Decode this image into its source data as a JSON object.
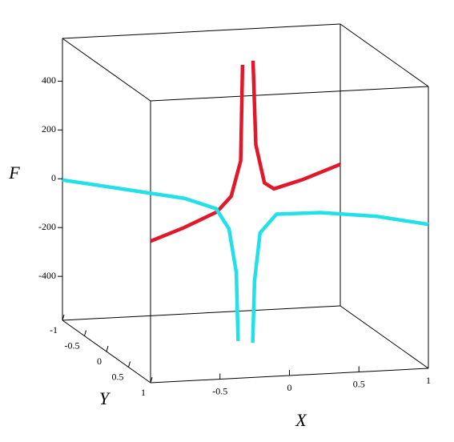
{
  "chart_data": {
    "type": "line3d",
    "xlabel": "X",
    "ylabel": "Y",
    "zlabel": "F",
    "xlim": [
      -1,
      1
    ],
    "ylim": [
      -1,
      1
    ],
    "zlim": [
      -580,
      575
    ],
    "xticks": [
      -0.5,
      0,
      0.5,
      1
    ],
    "yticks": [
      -1,
      -0.5,
      0,
      0.5,
      1
    ],
    "zticks": [
      -400,
      -200,
      0,
      200,
      400
    ],
    "series": [
      {
        "color": "#e0182a",
        "x": [
          -1,
          -0.65,
          -0.3,
          -0.15,
          -0.05,
          -0.03,
          0.02,
          0.08,
          0.11,
          0.2,
          0.3,
          0.6,
          1
        ],
        "y": [
          1,
          0.65,
          0.3,
          0.15,
          0.05,
          0.03,
          -0.02,
          -0.08,
          -0.11,
          -0.2,
          -0.3,
          -0.6,
          -1
        ],
        "values": [
          0,
          0,
          10,
          50,
          180,
          570,
          null,
          570,
          220,
          50,
          10,
          0,
          0
        ]
      },
      {
        "color": "#22e0e8",
        "x": [
          -1,
          -0.64,
          -0.33,
          -0.16,
          -0.09,
          -0.05,
          -0.04,
          0,
          0.04,
          0.05,
          0.08,
          0.17,
          0.41,
          0.72,
          1
        ],
        "y": [
          -1,
          -0.64,
          -0.33,
          -0.16,
          -0.09,
          -0.05,
          -0.04,
          0,
          0.04,
          0.05,
          0.08,
          0.17,
          0.41,
          0.72,
          1
        ],
        "values": [
          -5,
          -10,
          -15,
          -40,
          -115,
          -290,
          -570,
          null,
          -570,
          -315,
          -115,
          -30,
          0,
          15,
          10
        ]
      }
    ]
  }
}
